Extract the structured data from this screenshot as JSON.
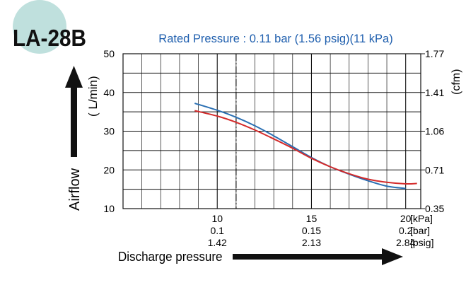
{
  "badge": {
    "model": "LA-28B",
    "circle_color": "#bfe0dd"
  },
  "chart_data": {
    "type": "line",
    "title": "Rated Pressure : 0.11 bar (1.56 psig)(11 kPa)",
    "title_color": "#1f5fae",
    "xlabel": "Discharge pressure",
    "ylabel_left": "Airflow",
    "ylabel_left_unit": "( L/min)",
    "ylabel_right_unit": "(cfm)",
    "xlim": [
      5,
      20.8
    ],
    "ylim": [
      10,
      50
    ],
    "grid": true,
    "x_ticks": [
      {
        "value": 10,
        "labels": [
          "10",
          "0.1",
          "1.42"
        ]
      },
      {
        "value": 15,
        "labels": [
          "15",
          "0.15",
          "2.13"
        ]
      },
      {
        "value": 20,
        "labels": [
          "20",
          "0.2",
          "2.84"
        ]
      }
    ],
    "x_unit_labels": [
      "[kPa]",
      "[bar]",
      "[psig]"
    ],
    "y_ticks_left": [
      10,
      20,
      30,
      40,
      50
    ],
    "y_ticks_right": [
      {
        "value": 50,
        "label": "1.77"
      },
      {
        "value": 40,
        "label": "1.41"
      },
      {
        "value": 30,
        "label": "1.06"
      },
      {
        "value": 20,
        "label": "0.71"
      },
      {
        "value": 10,
        "label": "0.35"
      }
    ],
    "rated_pressure_line": 11,
    "series": [
      {
        "color": "#2a6fb3",
        "points": [
          [
            8.8,
            37.2
          ],
          [
            10,
            35.4
          ],
          [
            11,
            33.6
          ],
          [
            12,
            31.4
          ],
          [
            13,
            28.8
          ],
          [
            14,
            26.0
          ],
          [
            15,
            23.2
          ],
          [
            16,
            20.8
          ],
          [
            17,
            18.9
          ],
          [
            18,
            17.2
          ],
          [
            19,
            15.8
          ],
          [
            20,
            15.2
          ]
        ]
      },
      {
        "color": "#d42b2b",
        "points": [
          [
            8.8,
            35.3
          ],
          [
            10,
            33.9
          ],
          [
            11,
            32.3
          ],
          [
            12,
            30.3
          ],
          [
            13,
            28.0
          ],
          [
            14,
            25.6
          ],
          [
            15,
            23.0
          ],
          [
            16,
            20.8
          ],
          [
            17,
            19.0
          ],
          [
            18,
            17.6
          ],
          [
            19,
            16.8
          ],
          [
            20,
            16.4
          ],
          [
            20.6,
            16.5
          ]
        ]
      }
    ]
  }
}
